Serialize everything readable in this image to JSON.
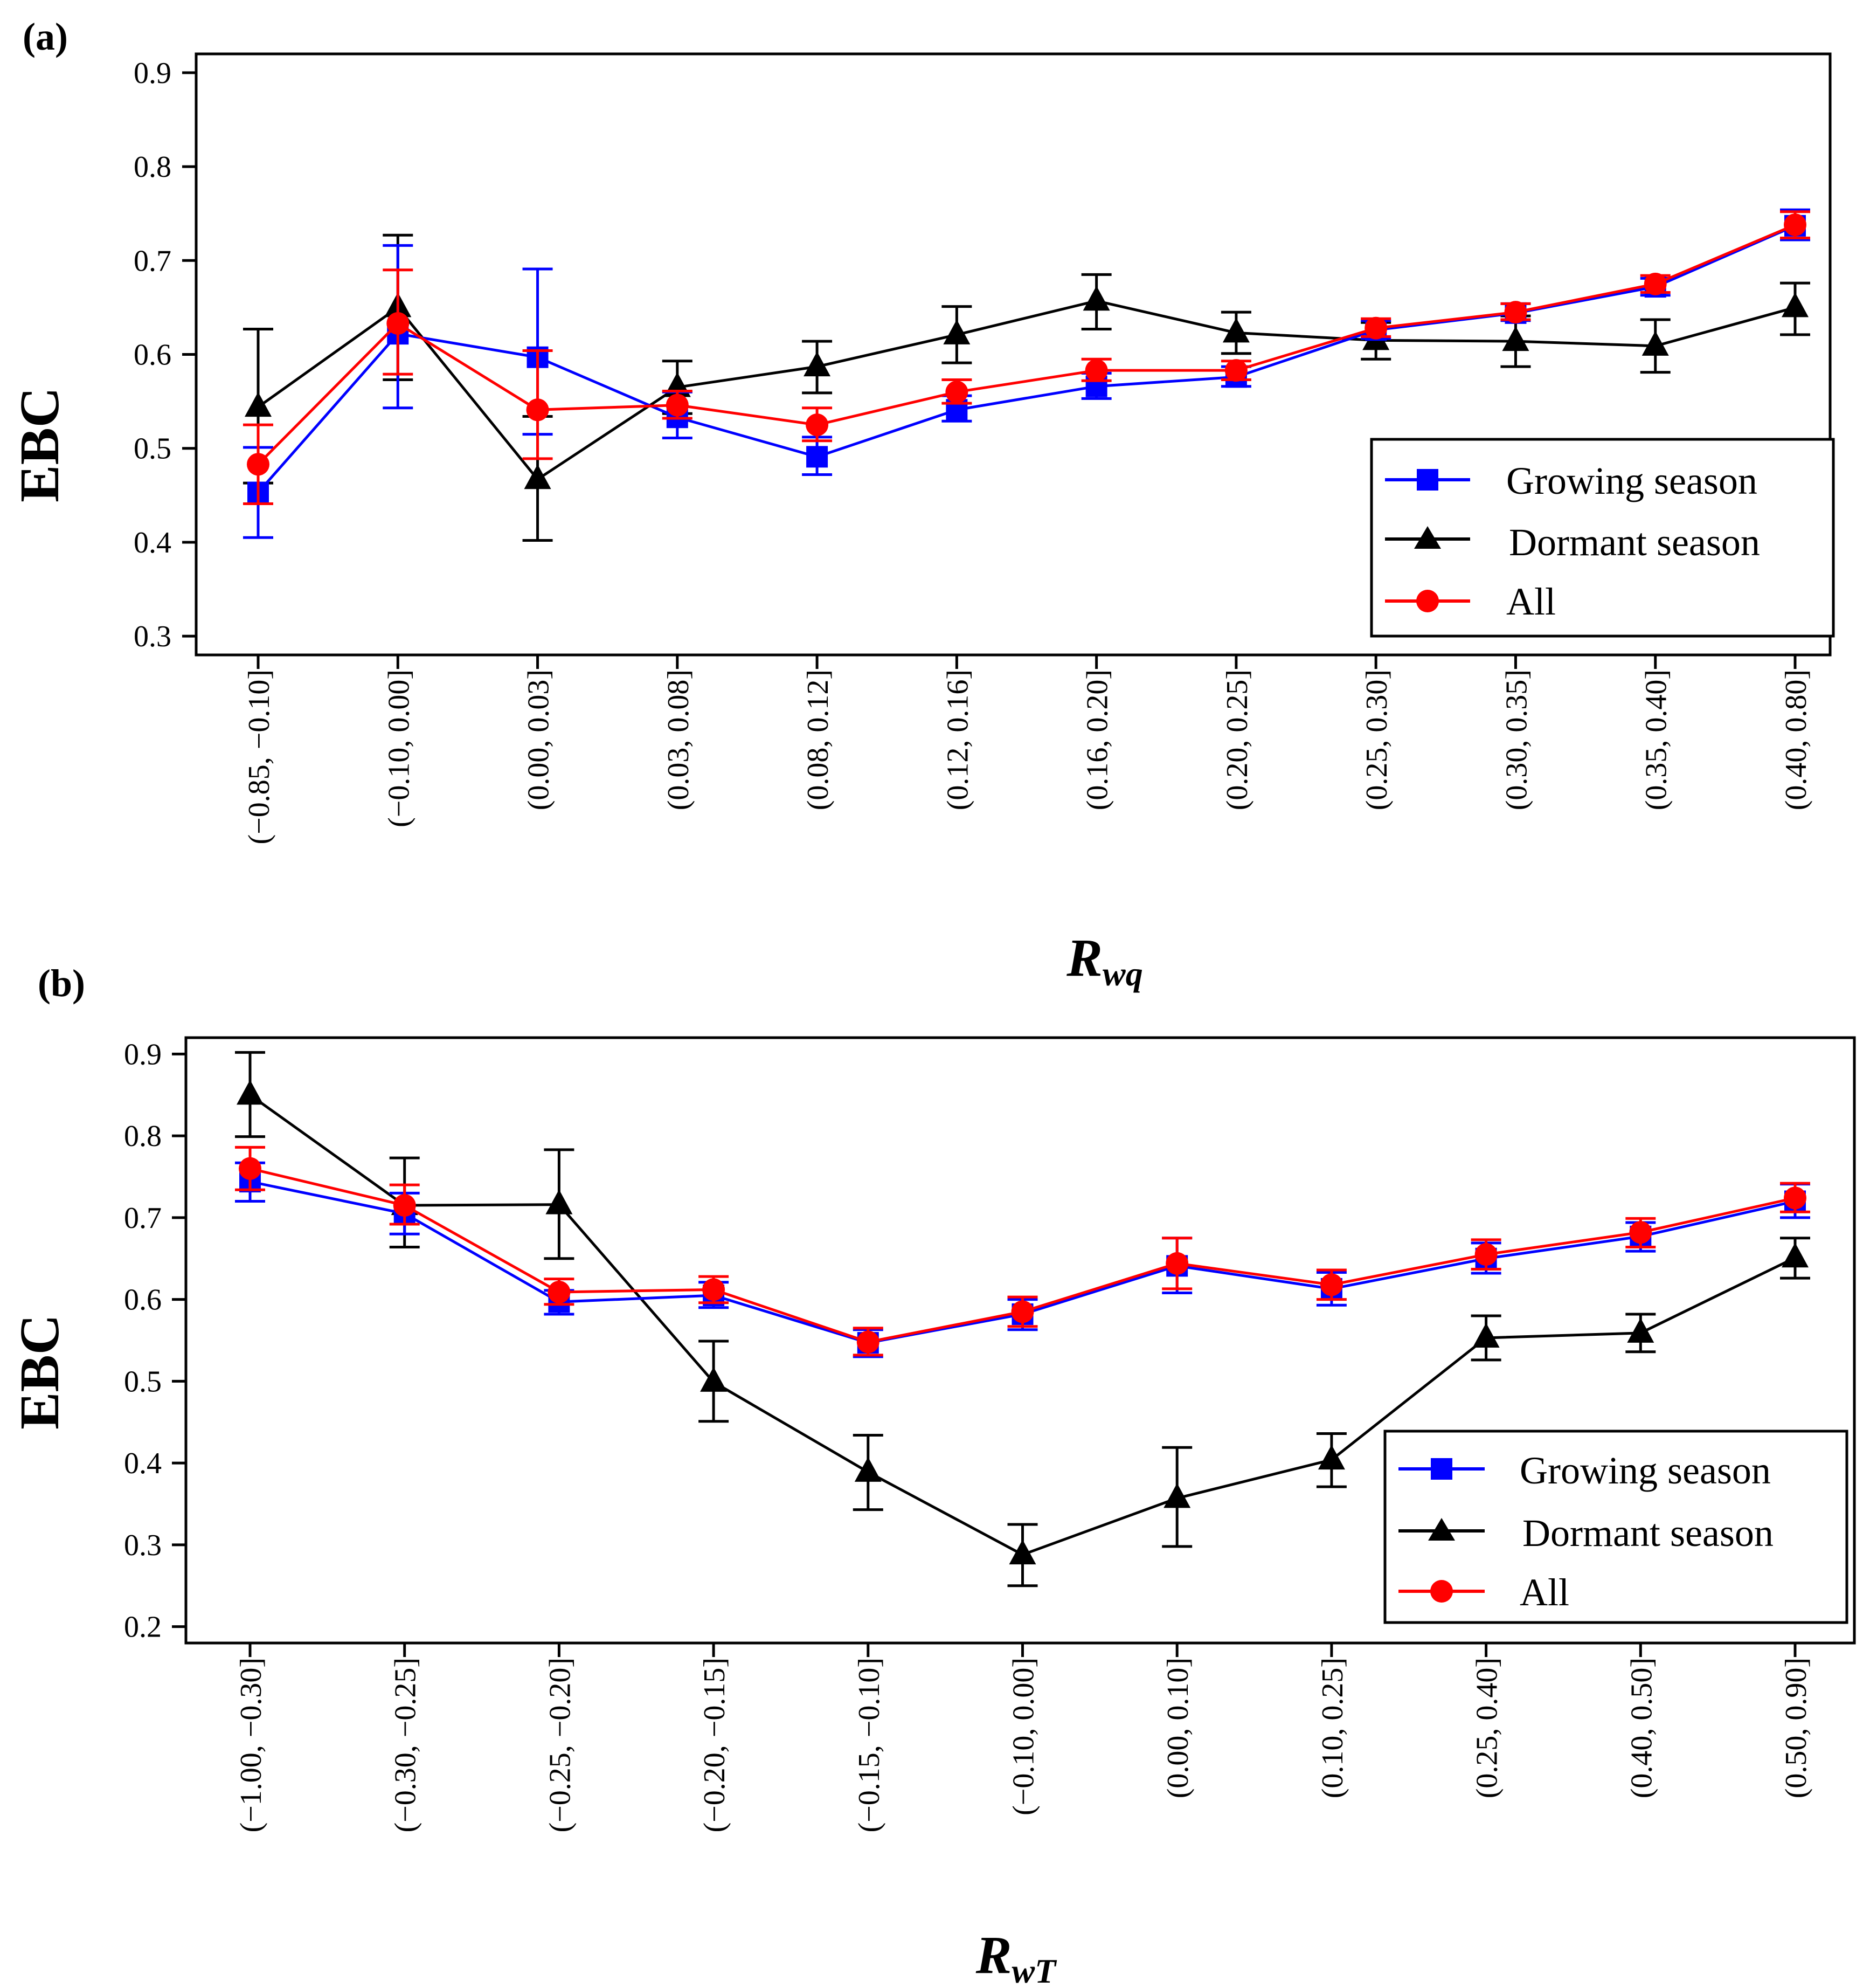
{
  "colors": {
    "growing": "#0000ff",
    "dormant": "#000000",
    "all": "#ff0000"
  },
  "chart_data": [
    {
      "type": "line",
      "panel_label": "(a)",
      "ylabel": "EBC",
      "xlabel_main": "R",
      "xlabel_sub": "wq",
      "ylim": [
        0.28,
        0.92
      ],
      "yticks": [
        "0.3",
        "0.4",
        "0.5",
        "0.6",
        "0.7",
        "0.8",
        "0.9"
      ],
      "ytick_values": [
        0.3,
        0.4,
        0.5,
        0.6,
        0.7,
        0.8,
        0.9
      ],
      "categories": [
        "(−0.85, −0.10]",
        "(−0.10, 0.00]",
        "(0.00, 0.03]",
        "(0.03, 0.08]",
        "(0.08, 0.12]",
        "(0.12, 0.16]",
        "(0.16, 0.20]",
        "(0.20, 0.25]",
        "(0.25, 0.30]",
        "(0.30, 0.35]",
        "(0.35, 0.40]",
        "(0.40, 0.80]"
      ],
      "legend_position": "bottom-right",
      "series": [
        {
          "name": "Growing season",
          "marker": "square",
          "color": "#0000ff",
          "values": [
            0.453,
            0.622,
            0.597,
            0.533,
            0.491,
            0.541,
            0.566,
            0.576,
            0.626,
            0.644,
            0.672,
            0.737
          ],
          "err_low": [
            0.405,
            0.543,
            0.515,
            0.511,
            0.472,
            0.529,
            0.553,
            0.566,
            0.617,
            0.636,
            0.663,
            0.722
          ],
          "err_high": [
            0.501,
            0.716,
            0.691,
            0.56,
            0.512,
            0.556,
            0.58,
            0.587,
            0.636,
            0.654,
            0.681,
            0.754
          ]
        },
        {
          "name": "Dormant season",
          "marker": "triangle",
          "color": "#000000",
          "values": [
            0.544,
            0.65,
            0.467,
            0.565,
            0.587,
            0.621,
            0.657,
            0.623,
            0.615,
            0.614,
            0.609,
            0.65
          ],
          "err_low": [
            0.463,
            0.573,
            0.402,
            0.537,
            0.559,
            0.591,
            0.627,
            0.601,
            0.595,
            0.587,
            0.581,
            0.621
          ],
          "err_high": [
            0.627,
            0.727,
            0.534,
            0.593,
            0.614,
            0.651,
            0.685,
            0.645,
            0.634,
            0.641,
            0.637,
            0.676
          ]
        },
        {
          "name": "All",
          "marker": "circle",
          "color": "#ff0000",
          "values": [
            0.483,
            0.633,
            0.541,
            0.546,
            0.525,
            0.56,
            0.583,
            0.583,
            0.628,
            0.645,
            0.675,
            0.738
          ],
          "err_low": [
            0.441,
            0.579,
            0.489,
            0.532,
            0.508,
            0.548,
            0.572,
            0.573,
            0.619,
            0.637,
            0.666,
            0.724
          ],
          "err_high": [
            0.525,
            0.69,
            0.604,
            0.561,
            0.543,
            0.573,
            0.595,
            0.593,
            0.638,
            0.654,
            0.684,
            0.752
          ]
        }
      ]
    },
    {
      "type": "line",
      "panel_label": "(b)",
      "ylabel": "EBC",
      "xlabel_main": "R",
      "xlabel_sub": "wT",
      "ylim": [
        0.18,
        0.92
      ],
      "yticks": [
        "0.2",
        "0.3",
        "0.4",
        "0.5",
        "0.6",
        "0.7",
        "0.8",
        "0.9"
      ],
      "ytick_values": [
        0.2,
        0.3,
        0.4,
        0.5,
        0.6,
        0.7,
        0.8,
        0.9
      ],
      "categories": [
        "(−1.00, −0.30]",
        "(−0.30, −0.25]",
        "(−0.25, −0.20]",
        "(−0.20, −0.15]",
        "(−0.15, −0.10]",
        "(−0.10, 0.00]",
        "(0.00, 0.10]",
        "(0.10, 0.25]",
        "(0.25, 0.40]",
        "(0.40, 0.50]",
        "(0.50, 0.90]"
      ],
      "legend_position": "bottom-right",
      "series": [
        {
          "name": "Growing season",
          "marker": "square",
          "color": "#0000ff",
          "values": [
            0.744,
            0.705,
            0.597,
            0.605,
            0.547,
            0.582,
            0.641,
            0.613,
            0.65,
            0.677,
            0.72
          ],
          "err_low": [
            0.72,
            0.68,
            0.582,
            0.59,
            0.53,
            0.563,
            0.608,
            0.593,
            0.632,
            0.659,
            0.7
          ],
          "err_high": [
            0.767,
            0.73,
            0.611,
            0.621,
            0.563,
            0.6,
            0.675,
            0.633,
            0.669,
            0.694,
            0.741
          ]
        },
        {
          "name": "Dormant season",
          "marker": "triangle",
          "color": "#000000",
          "values": [
            0.85,
            0.715,
            0.716,
            0.499,
            0.389,
            0.288,
            0.357,
            0.404,
            0.553,
            0.559,
            0.651
          ],
          "err_low": [
            0.799,
            0.664,
            0.65,
            0.451,
            0.343,
            0.25,
            0.298,
            0.371,
            0.526,
            0.536,
            0.626
          ],
          "err_high": [
            0.902,
            0.773,
            0.783,
            0.549,
            0.434,
            0.325,
            0.419,
            0.436,
            0.58,
            0.582,
            0.675
          ]
        },
        {
          "name": "All",
          "marker": "circle",
          "color": "#ff0000",
          "values": [
            0.76,
            0.715,
            0.609,
            0.612,
            0.548,
            0.585,
            0.644,
            0.618,
            0.655,
            0.682,
            0.724
          ],
          "err_low": [
            0.734,
            0.692,
            0.594,
            0.596,
            0.532,
            0.567,
            0.613,
            0.6,
            0.637,
            0.664,
            0.707
          ],
          "err_high": [
            0.786,
            0.74,
            0.625,
            0.628,
            0.565,
            0.603,
            0.675,
            0.636,
            0.673,
            0.699,
            0.742
          ]
        }
      ]
    }
  ]
}
